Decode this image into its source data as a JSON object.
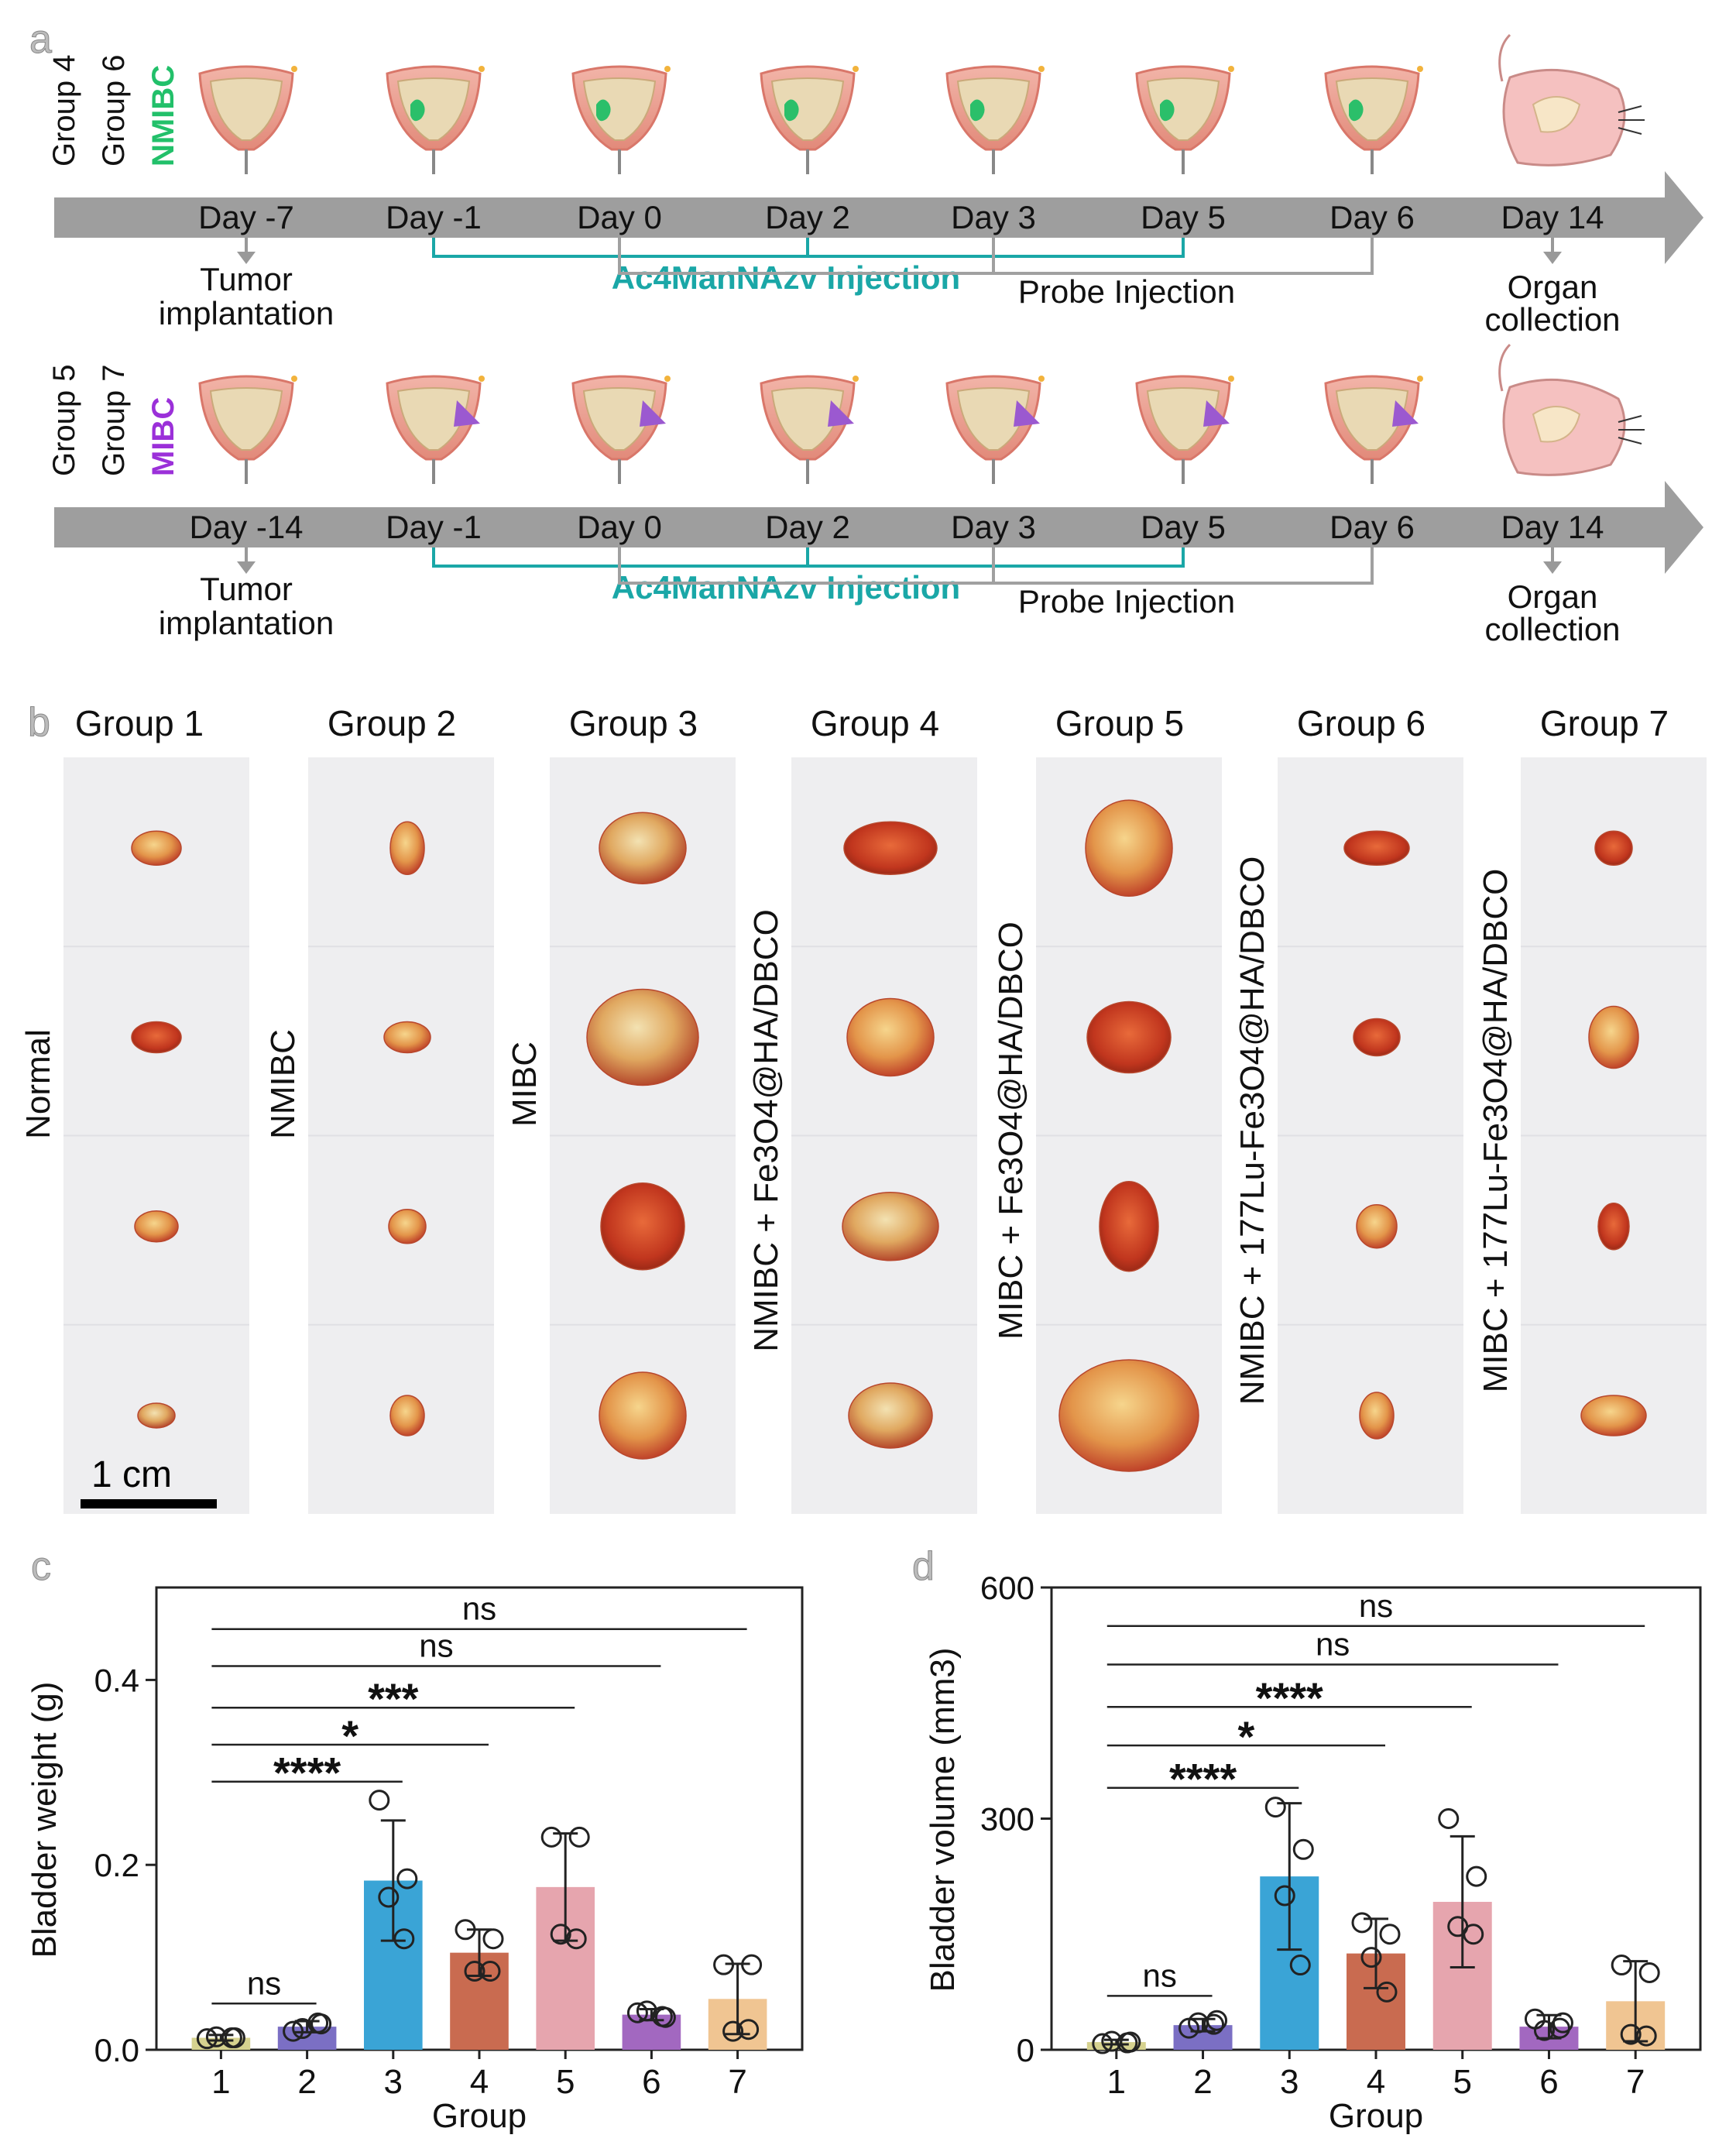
{
  "panel_a": {
    "label": "a",
    "timelines": [
      {
        "groups": [
          "Group 4",
          "Group 6"
        ],
        "model": "NMIBC",
        "model_color": "#22c06a",
        "days": [
          "Day -7",
          "Day -1",
          "Day 0",
          "Day 2",
          "Day 3",
          "Day 5",
          "Day 6",
          "Day 14"
        ],
        "tumor_label": [
          "Tumor",
          "implantation"
        ],
        "injection_label": "Ac4ManNAzv Injection",
        "probe_label": "Probe Injection",
        "organ_label": [
          "Organ",
          "collection"
        ],
        "tumor_color": "#2bbf6a"
      },
      {
        "groups": [
          "Group 5",
          "Group 7"
        ],
        "model": "MIBC",
        "model_color": "#9b30d9",
        "days": [
          "Day -14",
          "Day -1",
          "Day 0",
          "Day 2",
          "Day 3",
          "Day 5",
          "Day 6",
          "Day 14"
        ],
        "tumor_label": [
          "Tumor",
          "implantation"
        ],
        "injection_label": "Ac4ManNAzv Injection",
        "probe_label": "Probe Injection",
        "organ_label": [
          "Organ",
          "collection"
        ],
        "tumor_color": "#9b59d0"
      }
    ],
    "injection_color": "#1aa7a7"
  },
  "panel_b": {
    "label": "b",
    "columns": [
      {
        "group": "Group 1",
        "condition": "Normal"
      },
      {
        "group": "Group 2",
        "condition": "NMIBC"
      },
      {
        "group": "Group 3",
        "condition": "MIBC"
      },
      {
        "group": "Group 4",
        "condition": "NMIBC + Fe3O4@HA/DBCO"
      },
      {
        "group": "Group 5",
        "condition": "MIBC + Fe3O4@HA/DBCO"
      },
      {
        "group": "Group 6",
        "condition": "NMIBC + 177Lu-Fe3O4@HA/DBCO"
      },
      {
        "group": "Group 7",
        "condition": "MIBC + 177Lu-Fe3O4@HA/DBCO"
      }
    ],
    "scale_bar": "1 cm"
  },
  "chart_data": [
    {
      "panel": "c",
      "type": "bar",
      "xlabel": "Group",
      "ylabel": "Bladder weight (g)",
      "categories": [
        "1",
        "2",
        "3",
        "4",
        "5",
        "6",
        "7"
      ],
      "values": [
        0.013,
        0.025,
        0.183,
        0.105,
        0.176,
        0.038,
        0.055
      ],
      "errors": [
        0.003,
        0.006,
        0.065,
        0.025,
        0.058,
        0.006,
        0.038
      ],
      "points": [
        [
          0.012,
          0.013,
          0.014,
          0.013
        ],
        [
          0.02,
          0.028,
          0.023,
          0.029
        ],
        [
          0.27,
          0.185,
          0.165,
          0.12
        ],
        [
          0.13,
          0.12,
          0.085,
          0.085
        ],
        [
          0.23,
          0.23,
          0.125,
          0.12
        ],
        [
          0.04,
          0.035,
          0.042,
          0.036
        ],
        [
          0.092,
          0.092,
          0.02,
          0.022
        ]
      ],
      "ylim": [
        0,
        0.5
      ],
      "yticks": [
        "0.0",
        "0.2",
        "0.4"
      ],
      "ytick_values": [
        0,
        0.2,
        0.4
      ],
      "colors": [
        "#d6d28f",
        "#7b6fc4",
        "#3aa4d6",
        "#c96b50",
        "#e6a5ae",
        "#a268c0",
        "#f0c592"
      ],
      "comparisons": [
        {
          "from": 1,
          "to": 2,
          "label": "ns",
          "y": 0.05
        },
        {
          "from": 1,
          "to": 3,
          "label": "****",
          "y": 0.29
        },
        {
          "from": 1,
          "to": 4,
          "label": "*",
          "y": 0.33
        },
        {
          "from": 1,
          "to": 5,
          "label": "***",
          "y": 0.37
        },
        {
          "from": 1,
          "to": 6,
          "label": "ns",
          "y": 0.415
        },
        {
          "from": 1,
          "to": 7,
          "label": "ns",
          "y": 0.455
        }
      ]
    },
    {
      "panel": "d",
      "type": "bar",
      "xlabel": "Group",
      "ylabel": "Bladder volume (mm3)",
      "categories": [
        "1",
        "2",
        "3",
        "4",
        "5",
        "6",
        "7"
      ],
      "values": [
        10,
        32,
        225,
        125,
        192,
        30,
        63
      ],
      "errors": [
        3,
        8,
        95,
        45,
        85,
        15,
        52
      ],
      "points": [
        [
          8,
          10,
          11,
          9
        ],
        [
          28,
          38,
          35,
          33
        ],
        [
          315,
          260,
          200,
          110
        ],
        [
          165,
          150,
          120,
          75
        ],
        [
          300,
          225,
          160,
          150
        ],
        [
          40,
          35,
          25,
          28
        ],
        [
          110,
          100,
          20,
          18
        ]
      ],
      "ylim": [
        0,
        600
      ],
      "yticks": [
        "0",
        "300",
        "600"
      ],
      "ytick_values": [
        0,
        300,
        600
      ],
      "colors": [
        "#d6d28f",
        "#7b6fc4",
        "#3aa4d6",
        "#c96b50",
        "#e6a5ae",
        "#a268c0",
        "#f0c592"
      ],
      "comparisons": [
        {
          "from": 1,
          "to": 2,
          "label": "ns",
          "y": 70
        },
        {
          "from": 1,
          "to": 3,
          "label": "****",
          "y": 340
        },
        {
          "from": 1,
          "to": 4,
          "label": "*",
          "y": 395
        },
        {
          "from": 1,
          "to": 5,
          "label": "****",
          "y": 445
        },
        {
          "from": 1,
          "to": 6,
          "label": "ns",
          "y": 500
        },
        {
          "from": 1,
          "to": 7,
          "label": "ns",
          "y": 550
        }
      ]
    }
  ]
}
